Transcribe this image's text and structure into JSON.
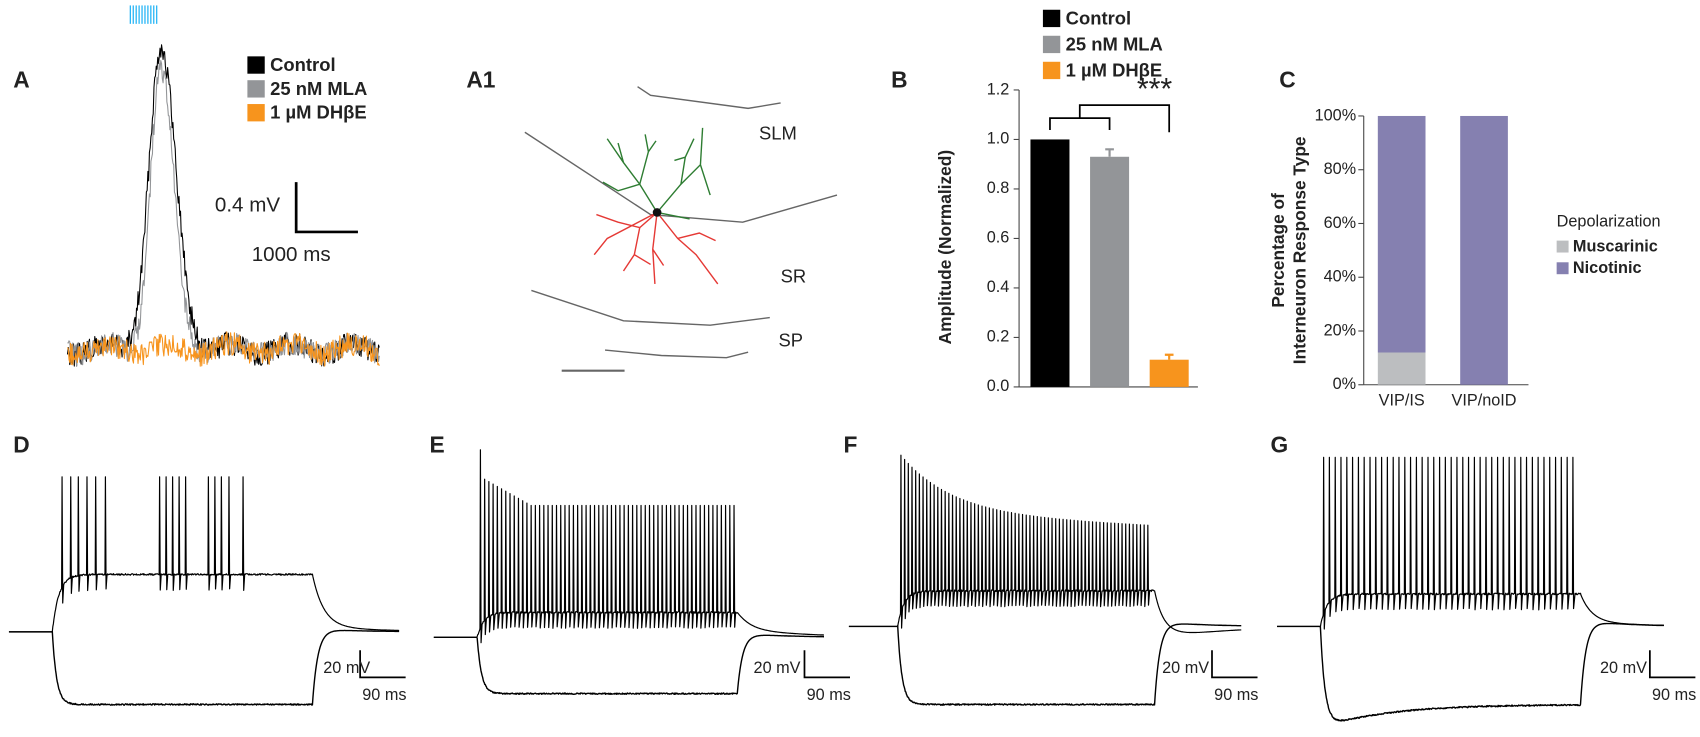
{
  "panel_labels": [
    "A",
    "A1",
    "B",
    "C",
    "D",
    "E",
    "F",
    "G"
  ],
  "panel_a": {
    "legend": [
      "Control",
      "25 nM MLA",
      "1 µM DHβE"
    ],
    "scale_y": "0.4 mV",
    "scale_x": "1000 ms"
  },
  "panel_a1": {
    "layers": [
      "SLM",
      "SR",
      "SP"
    ]
  },
  "traces": {
    "scale_labels": [
      [
        "20 mV",
        "90 ms"
      ],
      [
        "20 mV",
        "90 ms"
      ],
      [
        "20 mV",
        "90 ms"
      ],
      [
        "20 mV",
        "90 ms"
      ]
    ]
  },
  "chart_data": [
    {
      "type": "bar",
      "ylabel": "Amplitude (Normalized)",
      "annotation": "***",
      "ylim": [
        0,
        1.2
      ],
      "yticks": [
        {
          "value": 0,
          "label": "0.0"
        },
        0.2,
        0.4,
        0.6,
        0.8,
        {
          "value": 1,
          "label": "1.0"
        },
        1.2
      ],
      "series": [
        {
          "name": "Control",
          "color": "#000000",
          "values": [
            1.0
          ]
        },
        {
          "name": "25 nM MLA",
          "color": "#939598",
          "values": [
            0.93
          ],
          "errors": [
            0.03
          ]
        },
        {
          "name": "1 µM DHβE",
          "color": "#f7941d",
          "values": [
            0.11
          ],
          "errors": [
            0.02
          ]
        }
      ]
    },
    {
      "type": "stacked_bar",
      "ylabel": [
        "Percentage of",
        "Interneuron Response Type"
      ],
      "categories": [
        "VIP/IS",
        "VIP/noID"
      ],
      "legend_title": "Depolarization",
      "ylim": [
        0,
        100
      ],
      "yticks": [
        {
          "value": 0,
          "label": "0%"
        },
        {
          "value": 20,
          "label": "20%"
        },
        {
          "value": 40,
          "label": "40%"
        },
        {
          "value": 60,
          "label": "60%"
        },
        {
          "value": 80,
          "label": "80%"
        },
        {
          "value": 100,
          "label": "100%"
        }
      ],
      "series": [
        {
          "name": "Muscarinic",
          "color": "#bcbec0",
          "values": [
            12,
            0
          ]
        },
        {
          "name": "Nicotinic",
          "color": "#8580b0",
          "values": [
            88,
            100
          ]
        }
      ]
    }
  ]
}
